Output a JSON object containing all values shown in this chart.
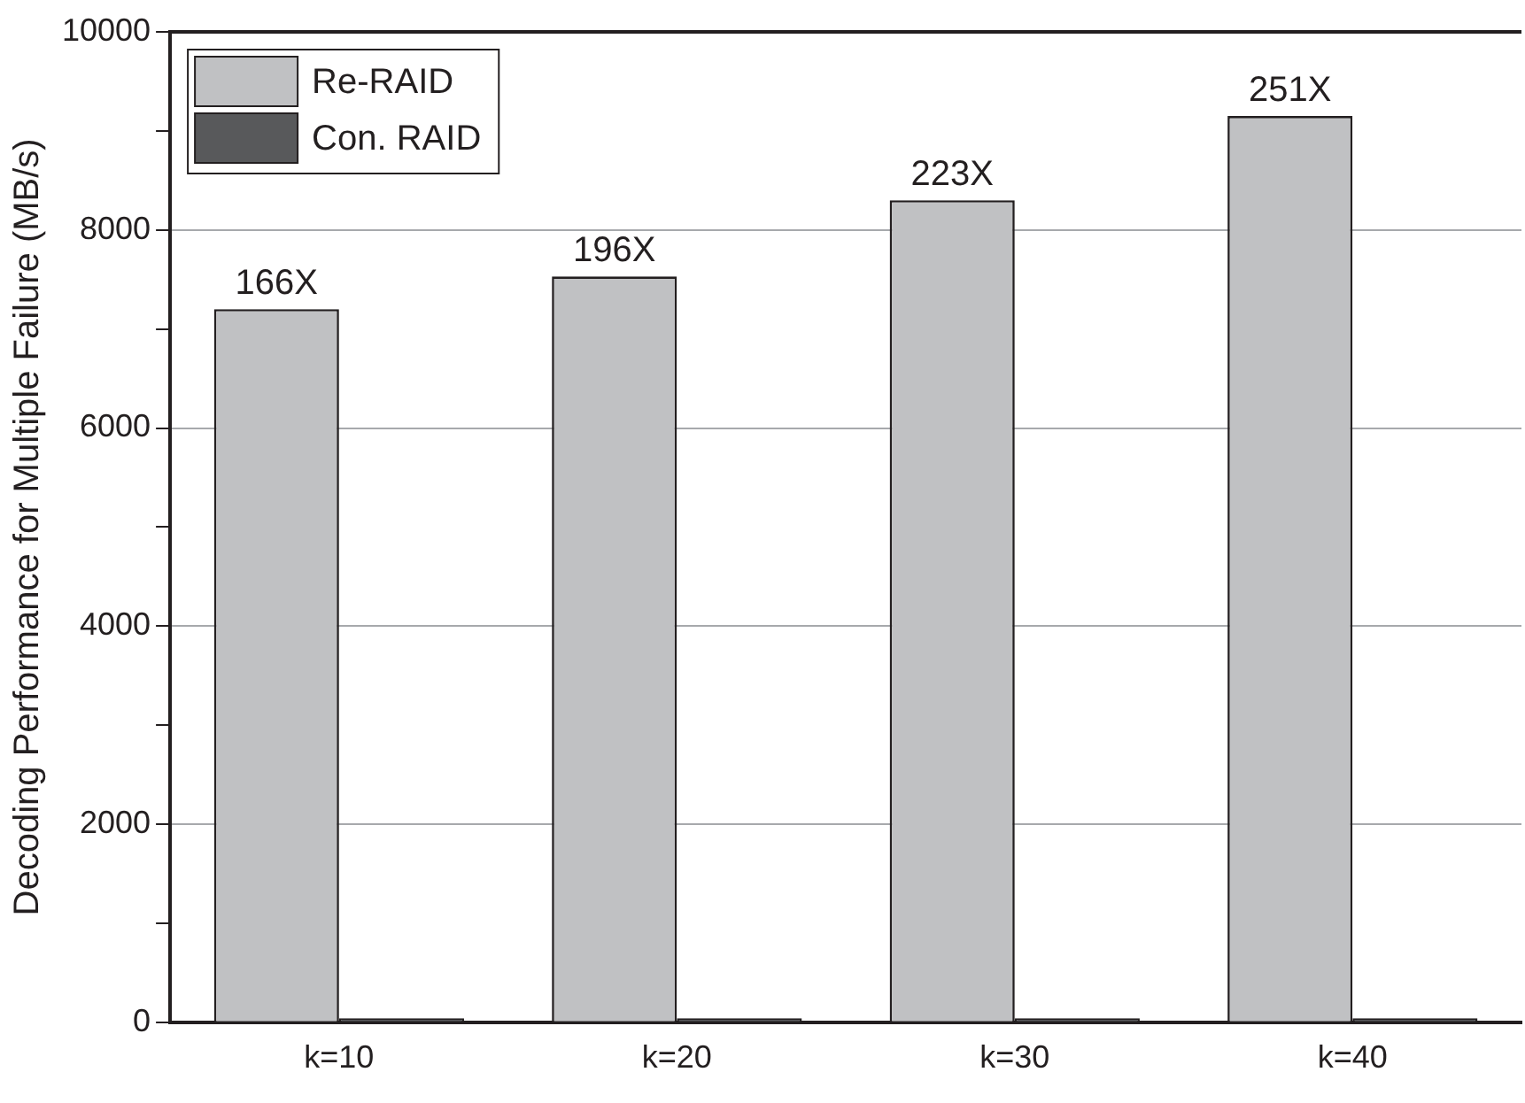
{
  "chart_data": {
    "type": "bar",
    "ylabel": "Decoding Performance for Multiple Failure (MB/s)",
    "categories": [
      "k=10",
      "k=20",
      "k=30",
      "k=40"
    ],
    "series": [
      {
        "name": "Re-RAID",
        "color": "#c0c1c3",
        "values": [
          7200,
          7530,
          8300,
          9150
        ]
      },
      {
        "name": "Con. RAID",
        "color": "#58595b",
        "values": [
          40,
          40,
          40,
          40
        ]
      }
    ],
    "annotations": [
      {
        "text": "166X",
        "x": "k=10",
        "y": 7200
      },
      {
        "text": "196X",
        "x": "k=20",
        "y": 7530
      },
      {
        "text": "223X",
        "x": "k=30",
        "y": 8300
      },
      {
        "text": "251X",
        "x": "k=40",
        "y": 9150
      }
    ],
    "ylim": [
      0,
      10000
    ],
    "yticks": [
      0,
      {
        "value": 1000,
        "label": null
      },
      2000,
      {
        "value": 3000,
        "label": null
      },
      4000,
      {
        "value": 5000,
        "label": null
      },
      6000,
      {
        "value": 7000,
        "label": null
      },
      8000,
      {
        "value": 9000,
        "label": null
      },
      10000
    ],
    "grid": "y",
    "legend": "top left"
  }
}
